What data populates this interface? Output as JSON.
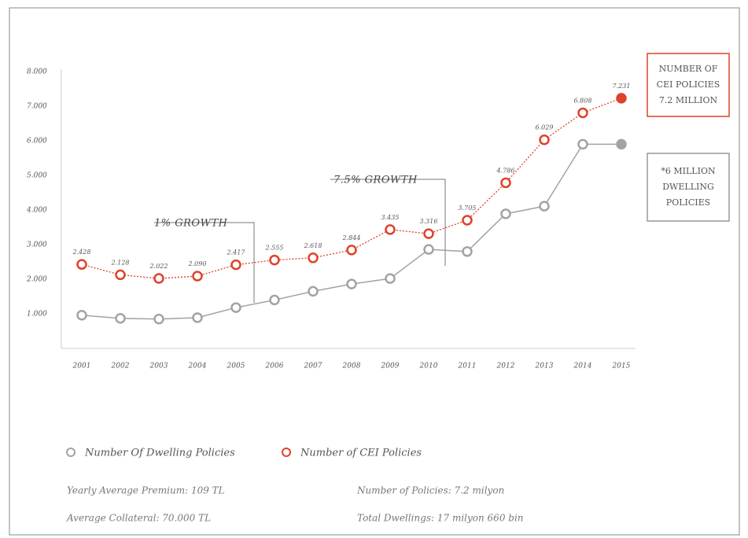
{
  "chart_data": {
    "type": "line",
    "categories": [
      "2001",
      "2002",
      "2003",
      "2004",
      "2005",
      "2006",
      "2007",
      "2008",
      "2009",
      "2010",
      "2011",
      "2012",
      "2013",
      "2014",
      "2015"
    ],
    "series": [
      {
        "name": "Number Of Dwelling Policies",
        "color": "#a3a3a3",
        "values": [
          960,
          870,
          850,
          890,
          1180,
          1400,
          1650,
          1860,
          2020,
          2860,
          2800,
          3890,
          4110,
          5900,
          5900
        ]
      },
      {
        "name": "Number of CEI Policies",
        "color": "#e0412b",
        "values": [
          2428,
          2128,
          2022,
          2090,
          2417,
          2555,
          2618,
          2844,
          3435,
          3316,
          3705,
          4786,
          6029,
          6808,
          7231
        ],
        "value_labels": [
          "2.428",
          "2.128",
          "2.022",
          "2.090",
          "2.417",
          "2.555",
          "2.618",
          "2.844",
          "3.435",
          "3.316",
          "3.705",
          "4.786",
          "6.029",
          "6.808",
          "7.231"
        ]
      }
    ],
    "ylim": [
      0,
      8000
    ],
    "yticks": [
      {
        "value": 1000,
        "label": "1.000"
      },
      {
        "value": 2000,
        "label": "2.000"
      },
      {
        "value": 3000,
        "label": "3.000"
      },
      {
        "value": 4000,
        "label": "4.000"
      },
      {
        "value": 5000,
        "label": "5.000"
      },
      {
        "value": 6000,
        "label": "6.000"
      },
      {
        "value": 7000,
        "label": "7.000"
      },
      {
        "value": 8000,
        "label": "8.000"
      }
    ],
    "annotations": [
      {
        "text": "1% GROWTH"
      },
      {
        "text": "7.5% GROWTH"
      }
    ],
    "callouts": [
      {
        "lines": [
          "NUMBER OF",
          "CEI POLICIES",
          "7.2 MILLION"
        ],
        "color": "#e0412b"
      },
      {
        "lines": [
          "*6 MILLION",
          "DWELLING",
          "POLICIES"
        ],
        "color": "#999999"
      }
    ],
    "notes": [
      "Yearly Average Premium: 109 TL",
      "Number of Policies: 7.2 milyon",
      "Average Collateral: 70.000 TL",
      "Total Dwellings: 17 milyon 660 bin"
    ]
  }
}
